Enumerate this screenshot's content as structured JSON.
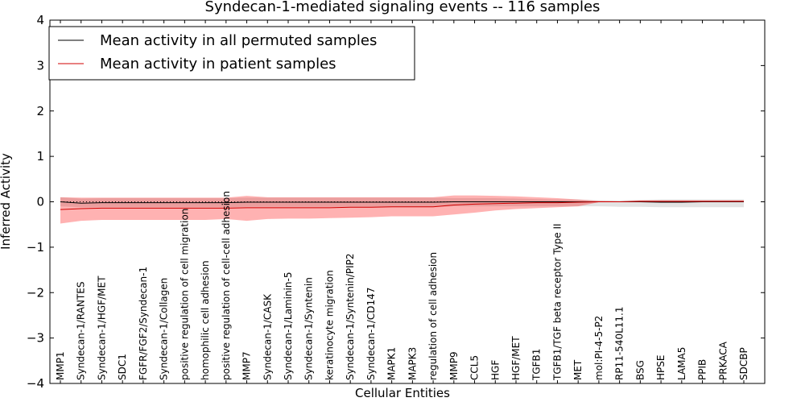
{
  "chart_data": {
    "type": "line",
    "title": "Syndecan-1-mediated signaling events -- 116 samples",
    "xlabel": "Cellular Entities",
    "ylabel": "Inferred Activity",
    "ylim": [
      -4,
      4
    ],
    "yticks": [
      "−4",
      "−3",
      "−2",
      "−1",
      "0",
      "1",
      "2",
      "3",
      "4"
    ],
    "ytick_values": [
      -4,
      -3,
      -2,
      -1,
      0,
      1,
      2,
      3,
      4
    ],
    "grid": false,
    "legend_position": "top-left",
    "categories": [
      "MMP1",
      "Syndecan-1/RANTES",
      "Syndecan-1/HGF/MET",
      "SDC1",
      "FGFR/FGF2/Syndecan-1",
      "Syndecan-1/Collagen",
      "positive regulation of cell migration",
      "homophilic cell adhesion",
      "positive regulation of cell-cell adhesion",
      "MMP7",
      "Syndecan-1/CASK",
      "Syndecan-1/Laminin-5",
      "Syndecan-1/Syntenin",
      "keratinocyte migration",
      "Syndecan-1/Syntenin/PIP2",
      "Syndecan-1/CD147",
      "MAPK1",
      "MAPK3",
      "regulation of cell adhesion",
      "MMP9",
      "CCL5",
      "HGF",
      "HGF/MET",
      "TGFB1",
      "TGFB1/TGF beta receptor Type II",
      "MET",
      "mol:PI-4-5-P2",
      "RP11-540L11.1",
      "BSG",
      "HPSE",
      "LAMA5",
      "PPIB",
      "PRKACA",
      "SDCBP"
    ],
    "series": [
      {
        "name": "Mean activity in all permuted samples",
        "color": "#000000",
        "values": [
          0.0,
          -0.03,
          -0.02,
          -0.02,
          -0.02,
          -0.02,
          -0.02,
          -0.02,
          -0.02,
          -0.01,
          -0.01,
          -0.01,
          -0.01,
          -0.01,
          -0.01,
          -0.01,
          -0.01,
          -0.01,
          -0.01,
          0.0,
          0.0,
          0.0,
          0.0,
          0.0,
          0.0,
          0.0,
          0.0,
          0.0,
          0.0,
          -0.01,
          -0.01,
          0.0,
          0.0,
          0.0
        ],
        "band_upper": [
          0.1,
          0.07,
          0.08,
          0.08,
          0.08,
          0.08,
          0.08,
          0.08,
          0.08,
          0.09,
          0.09,
          0.09,
          0.09,
          0.09,
          0.09,
          0.09,
          0.09,
          0.09,
          0.09,
          0.08,
          0.08,
          0.08,
          0.07,
          0.06,
          0.05,
          0.05,
          0.03,
          0.03,
          0.04,
          0.05,
          0.05,
          0.05,
          0.05,
          0.05
        ],
        "band_lower": [
          -0.1,
          -0.12,
          -0.12,
          -0.12,
          -0.12,
          -0.12,
          -0.12,
          -0.12,
          -0.12,
          -0.11,
          -0.11,
          -0.11,
          -0.11,
          -0.11,
          -0.11,
          -0.11,
          -0.11,
          -0.11,
          -0.11,
          -0.1,
          -0.1,
          -0.1,
          -0.1,
          -0.1,
          -0.1,
          -0.1,
          -0.1,
          -0.11,
          -0.11,
          -0.12,
          -0.12,
          -0.12,
          -0.12,
          -0.12
        ]
      },
      {
        "name": "Mean activity in patient samples",
        "color": "#d00000",
        "values": [
          -0.17,
          -0.15,
          -0.14,
          -0.14,
          -0.14,
          -0.14,
          -0.14,
          -0.14,
          -0.14,
          -0.13,
          -0.13,
          -0.13,
          -0.13,
          -0.13,
          -0.12,
          -0.12,
          -0.11,
          -0.11,
          -0.11,
          -0.07,
          -0.05,
          -0.04,
          -0.03,
          -0.02,
          -0.02,
          -0.01,
          0.0,
          0.0,
          0.01,
          0.01,
          0.01,
          0.01,
          0.01,
          0.01
        ],
        "band_upper": [
          0.1,
          0.09,
          0.09,
          0.09,
          0.09,
          0.09,
          0.09,
          0.09,
          0.09,
          0.13,
          0.1,
          0.1,
          0.1,
          0.1,
          0.1,
          0.1,
          0.1,
          0.1,
          0.1,
          0.14,
          0.14,
          0.13,
          0.12,
          0.1,
          0.08,
          0.05,
          0.02,
          0.01,
          0.03,
          0.03,
          0.03,
          0.03,
          0.03,
          0.03
        ],
        "band_lower": [
          -0.48,
          -0.42,
          -0.4,
          -0.4,
          -0.4,
          -0.4,
          -0.4,
          -0.4,
          -0.38,
          -0.42,
          -0.38,
          -0.37,
          -0.37,
          -0.36,
          -0.35,
          -0.34,
          -0.32,
          -0.32,
          -0.32,
          -0.28,
          -0.24,
          -0.19,
          -0.16,
          -0.14,
          -0.12,
          -0.1,
          -0.01,
          0.0,
          0.0,
          0.0,
          0.0,
          0.0,
          0.0,
          0.0
        ]
      }
    ]
  }
}
